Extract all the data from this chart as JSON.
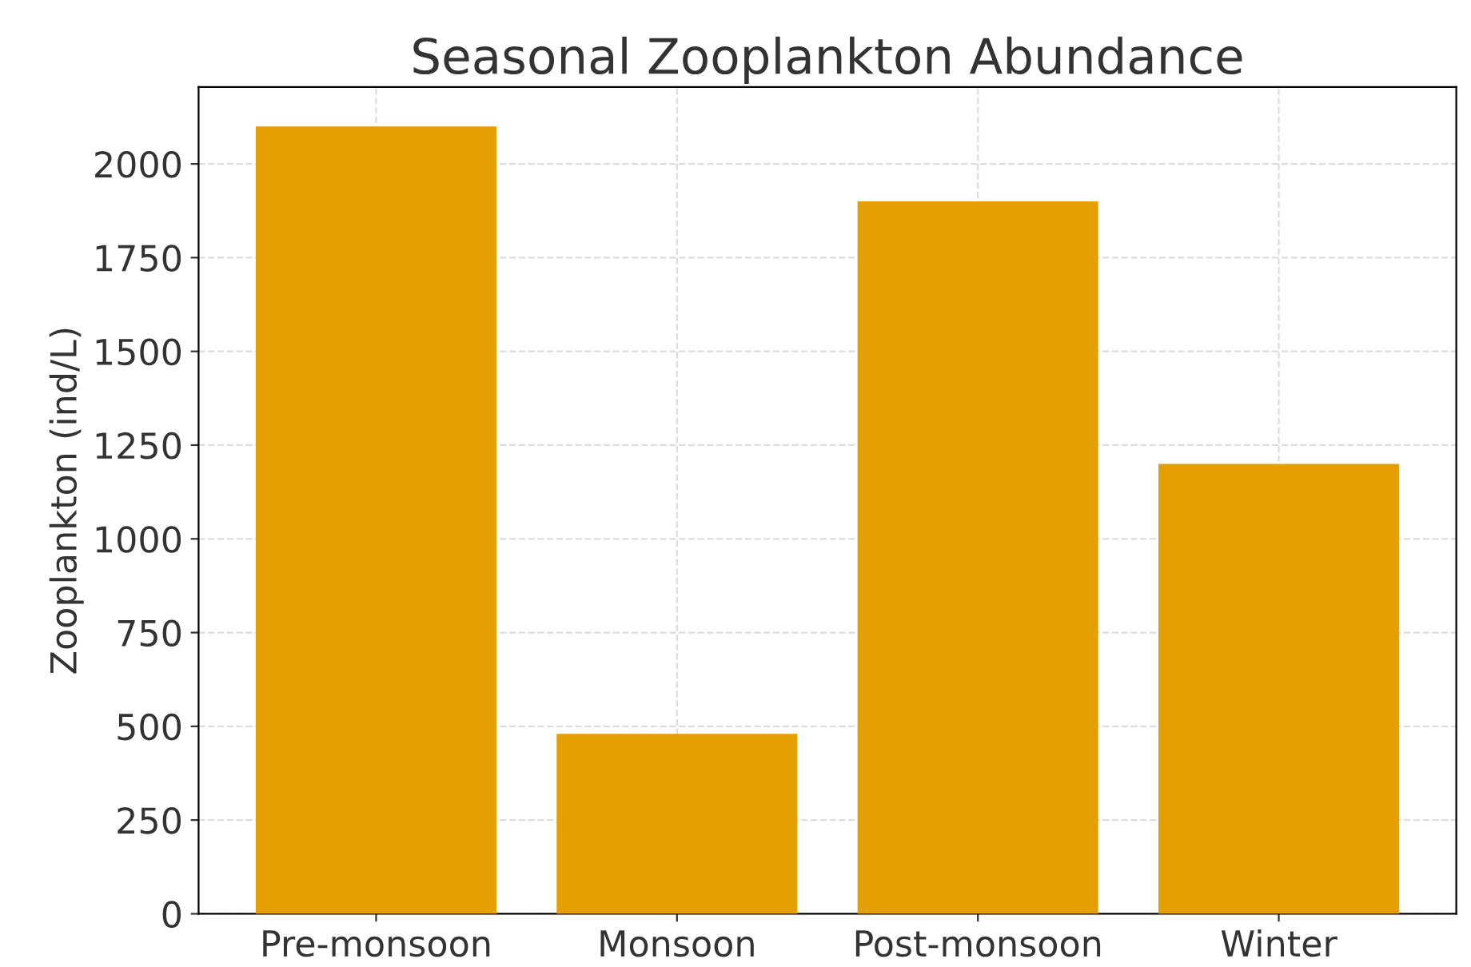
{
  "chart_data": {
    "type": "bar",
    "title": "Seasonal Zooplankton Abundance",
    "ylabel": "Zooplankton (ind/L)",
    "categories": [
      "Pre-monsoon",
      "Monsoon",
      "Post-monsoon",
      "Winter"
    ],
    "values": [
      2100,
      480,
      1900,
      1200
    ],
    "color": "#e69f00",
    "ylim": [
      0,
      2205
    ],
    "yticks": [
      0,
      250,
      500,
      750,
      1000,
      1250,
      1500,
      1750,
      2000
    ],
    "grid": true
  }
}
